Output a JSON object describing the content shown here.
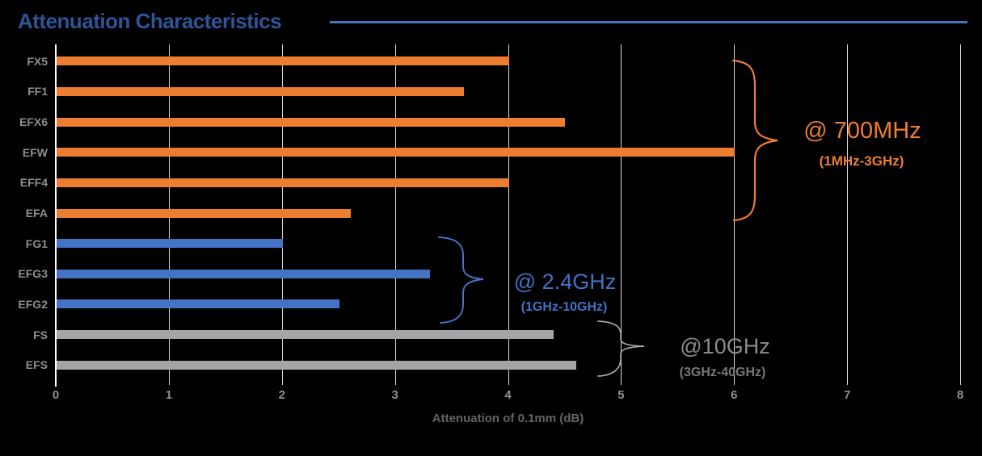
{
  "chart_data": {
    "type": "bar",
    "orientation": "horizontal",
    "title": "Attenuation Characteristics",
    "xlabel": "Attenuation of 0.1mm (dB)",
    "xlim": [
      0,
      8
    ],
    "xticks": [
      "0",
      "1",
      "2",
      "3",
      "4",
      "5",
      "6",
      "7",
      "8"
    ],
    "grid": true,
    "legend": "none",
    "categories": [
      "FX5",
      "FF1",
      "EFX6",
      "EFW",
      "EFF4",
      "EFA",
      "FG1",
      "EFG3",
      "EFG2",
      "FS",
      "EFS"
    ],
    "values": [
      4.0,
      3.6,
      4.5,
      6.0,
      4.0,
      2.6,
      2.0,
      3.3,
      2.5,
      4.4,
      4.6
    ],
    "bar_group_of_category": [
      "700MHz",
      "700MHz",
      "700MHz",
      "700MHz",
      "700MHz",
      "700MHz",
      "2.4GHz",
      "2.4GHz",
      "2.4GHz",
      "10GHz",
      "10GHz"
    ],
    "annotations": [
      {
        "label": "@ 700MHz",
        "sublabel": "(1MHz-3GHz)",
        "applies_to": [
          "FX5",
          "FF1",
          "EFX6",
          "EFW",
          "EFF4",
          "EFA"
        ]
      },
      {
        "label": "@ 2.4GHz",
        "sublabel": "(1GHz-10GHz)",
        "applies_to": [
          "FG1",
          "EFG3",
          "EFG2"
        ]
      },
      {
        "label": "@10GHz",
        "sublabel": "(3GHz-40GHz)",
        "applies_to": [
          "FS",
          "EFS"
        ]
      }
    ]
  },
  "colors": {
    "background": "#000000",
    "title_text": "#2E5597",
    "title_rule": "#4472C4",
    "group_700mhz": "#ED7D31",
    "group_2_4ghz": "#4472C4",
    "group_10ghz": "#A5A5A5",
    "anno_10ghz_text": "#8B8B8B",
    "anno_10ghz_subtext": "#787878",
    "gridline": "#D9D9D9",
    "axis_line": "#FFFFFF",
    "tick_label": "#8F8F8F",
    "category_label": "#8F8F8F",
    "axis_title": "#646464"
  }
}
